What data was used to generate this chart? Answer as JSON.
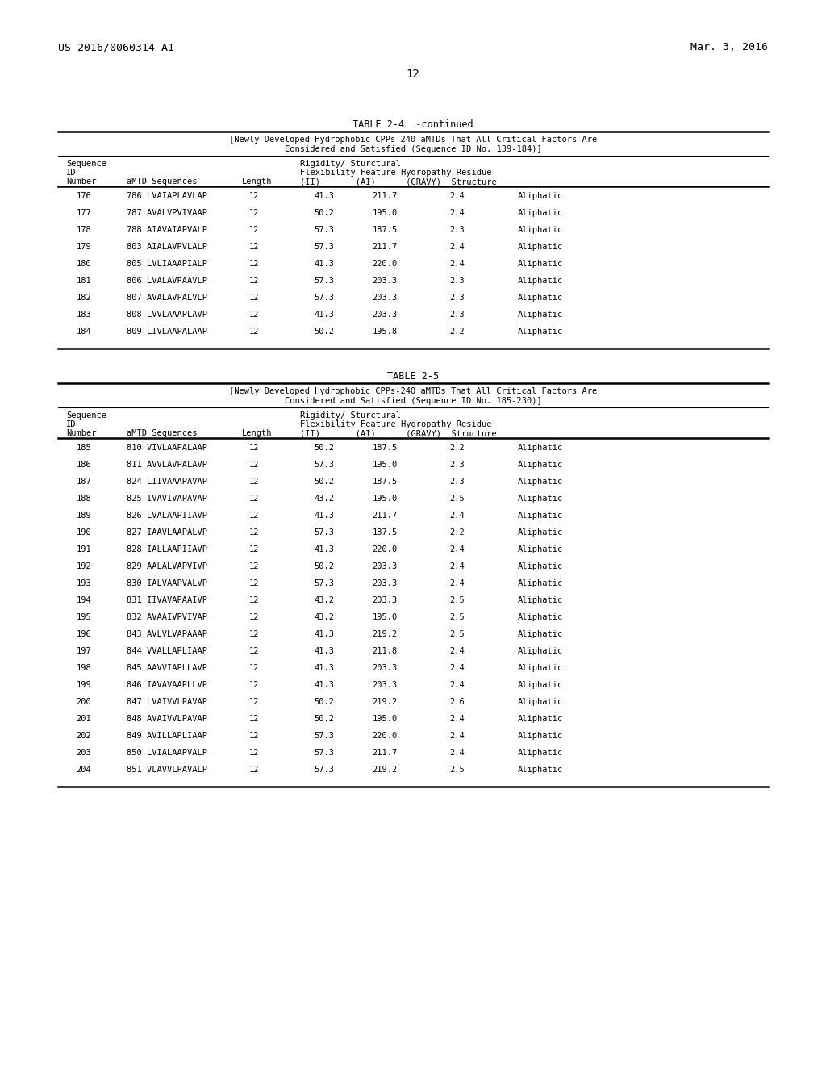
{
  "header_left": "US 2016/0060314 A1",
  "header_right": "Mar. 3, 2016",
  "page_number": "12",
  "table1": {
    "title": "TABLE 2-4  -continued",
    "subtitle_line1": "[Newly Developed Hydrophobic CPPs-240 aMTDs That All Critical Factors Are",
    "subtitle_line2": "Considered and Satisfied (Sequence ID No. 139-184)]",
    "rows": [
      [
        "176",
        "786 LVAIAPLAVLAP",
        "12",
        "41.3",
        "211.7",
        "2.4",
        "Aliphatic"
      ],
      [
        "177",
        "787 AVALVPVIVAAP",
        "12",
        "50.2",
        "195.0",
        "2.4",
        "Aliphatic"
      ],
      [
        "178",
        "788 AIAVAIAPVALP",
        "12",
        "57.3",
        "187.5",
        "2.3",
        "Aliphatic"
      ],
      [
        "179",
        "803 AIALAVPVLALP",
        "12",
        "57.3",
        "211.7",
        "2.4",
        "Aliphatic"
      ],
      [
        "180",
        "805 LVLIAAAPIALP",
        "12",
        "41.3",
        "220.0",
        "2.4",
        "Aliphatic"
      ],
      [
        "181",
        "806 LVALAVPAAVLP",
        "12",
        "57.3",
        "203.3",
        "2.3",
        "Aliphatic"
      ],
      [
        "182",
        "807 AVALAVPALVLP",
        "12",
        "57.3",
        "203.3",
        "2.3",
        "Aliphatic"
      ],
      [
        "183",
        "808 LVVLAAAPLAVP",
        "12",
        "41.3",
        "203.3",
        "2.3",
        "Aliphatic"
      ],
      [
        "184",
        "809 LIVLAAPALAAP",
        "12",
        "50.2",
        "195.8",
        "2.2",
        "Aliphatic"
      ]
    ]
  },
  "table2": {
    "title": "TABLE 2-5",
    "subtitle_line1": "[Newly Developed Hydrophobic CPPs-240 aMTDs That All Critical Factors Are",
    "subtitle_line2": "Considered and Satisfied (Sequence ID No. 185-230)]",
    "rows": [
      [
        "185",
        "810 VIVLAAPALAAP",
        "12",
        "50.2",
        "187.5",
        "2.2",
        "Aliphatic"
      ],
      [
        "186",
        "811 AVVLAVPALAVP",
        "12",
        "57.3",
        "195.0",
        "2.3",
        "Aliphatic"
      ],
      [
        "187",
        "824 LIIVAAAPAVAP",
        "12",
        "50.2",
        "187.5",
        "2.3",
        "Aliphatic"
      ],
      [
        "188",
        "825 IVAVIVAPAVAP",
        "12",
        "43.2",
        "195.0",
        "2.5",
        "Aliphatic"
      ],
      [
        "189",
        "826 LVALAAPIIAVP",
        "12",
        "41.3",
        "211.7",
        "2.4",
        "Aliphatic"
      ],
      [
        "190",
        "827 IAAVLAAPALVP",
        "12",
        "57.3",
        "187.5",
        "2.2",
        "Aliphatic"
      ],
      [
        "191",
        "828 IALLAAPIIAVP",
        "12",
        "41.3",
        "220.0",
        "2.4",
        "Aliphatic"
      ],
      [
        "192",
        "829 AALALVAPVIVP",
        "12",
        "50.2",
        "203.3",
        "2.4",
        "Aliphatic"
      ],
      [
        "193",
        "830 IALVAAPVALVP",
        "12",
        "57.3",
        "203.3",
        "2.4",
        "Aliphatic"
      ],
      [
        "194",
        "831 IIVAVAPAAIVP",
        "12",
        "43.2",
        "203.3",
        "2.5",
        "Aliphatic"
      ],
      [
        "195",
        "832 AVAAIVPVIVAP",
        "12",
        "43.2",
        "195.0",
        "2.5",
        "Aliphatic"
      ],
      [
        "196",
        "843 AVLVLVAPAAAP",
        "12",
        "41.3",
        "219.2",
        "2.5",
        "Aliphatic"
      ],
      [
        "197",
        "844 VVALLAPLIAAP",
        "12",
        "41.3",
        "211.8",
        "2.4",
        "Aliphatic"
      ],
      [
        "198",
        "845 AAVVIAPLLAVP",
        "12",
        "41.3",
        "203.3",
        "2.4",
        "Aliphatic"
      ],
      [
        "199",
        "846 IAVAVAAPLLVP",
        "12",
        "41.3",
        "203.3",
        "2.4",
        "Aliphatic"
      ],
      [
        "200",
        "847 LVAIVVLPAVAP",
        "12",
        "50.2",
        "219.2",
        "2.6",
        "Aliphatic"
      ],
      [
        "201",
        "848 AVAIVVLPAVAP",
        "12",
        "50.2",
        "195.0",
        "2.4",
        "Aliphatic"
      ],
      [
        "202",
        "849 AVILLAPLIAAP",
        "12",
        "57.3",
        "220.0",
        "2.4",
        "Aliphatic"
      ],
      [
        "203",
        "850 LVIALAAPVALP",
        "12",
        "57.3",
        "211.7",
        "2.4",
        "Aliphatic"
      ],
      [
        "204",
        "851 VLAVVLPAVALP",
        "12",
        "57.3",
        "219.2",
        "2.5",
        "Aliphatic"
      ]
    ]
  },
  "bg_color": "#ffffff",
  "text_color": "#000000"
}
